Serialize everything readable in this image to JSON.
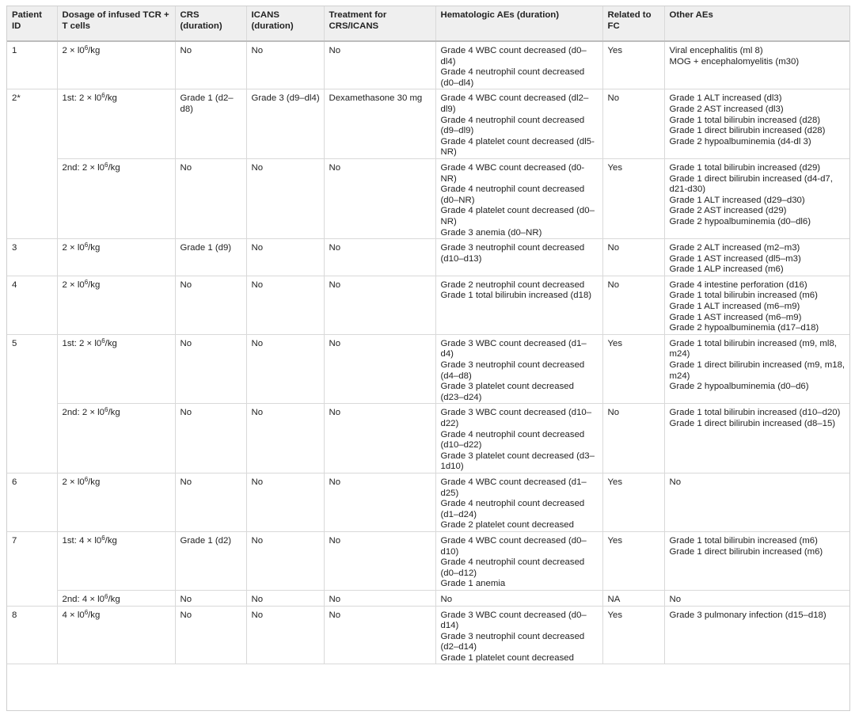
{
  "table": {
    "headers": [
      "Patient ID",
      "Dosage of infused TCR + T cells",
      "CRS (duration)",
      "ICANS (duration)",
      "Treatment for CRS/ICANS",
      "Hematologic AEs (duration)",
      "Related to FC",
      "Other AEs"
    ],
    "rows": [
      {
        "patient": "1",
        "rowspan": 1,
        "dose_base": "2 × l0",
        "dose_exp": "6",
        "dose_unit": "/kg",
        "crs": "No",
        "icans": "No",
        "treatment": "No",
        "hematologic": [
          "Grade 4 WBC count decreased (d0–dl4)",
          "Grade 4 neutrophil count decreased (d0–dl4)"
        ],
        "related_fc": "Yes",
        "other": [
          "Viral encephalitis (ml 8)",
          "MOG + encephalomyelitis (m30)"
        ]
      },
      {
        "patient": "2*",
        "rowspan": 2,
        "dose_base": "1st: 2 × l0",
        "dose_exp": "6",
        "dose_unit": "/kg",
        "crs": "Grade 1 (d2–d8)",
        "icans": "Grade 3 (d9–dl4)",
        "treatment": "Dexamethasone 30 mg",
        "hematologic": [
          "Grade 4 WBC count decreased (dl2–dl9)",
          "Grade 4 neutrophil count decreased (d9–dl9)",
          "Grade 4 platelet count decreased (dl5-NR)"
        ],
        "related_fc": "No",
        "other": [
          "Grade 1 ALT increased (dl3)",
          "Grade 2 AST increased (dl3)",
          "Grade 1 total bilirubin increased (d28)",
          "Grade 1 direct bilirubin increased (d28)",
          "Grade 2 hypoalbuminemia (d4-dl 3)"
        ]
      },
      {
        "patient": "",
        "continued": true,
        "dose_base": "2nd: 2 × l0",
        "dose_exp": "6",
        "dose_unit": "/kg",
        "crs": "No",
        "icans": "No",
        "treatment": "No",
        "hematologic": [
          "Grade 4 WBC count decreased (d0-NR)",
          "Grade 4 neutrophil count decreased (d0–NR)",
          "Grade 4 platelet count decreased (d0–NR)",
          "Grade 3 anemia (d0–NR)"
        ],
        "related_fc": "Yes",
        "other": [
          "Grade 1 total bilirubin increased (d29)",
          "Grade 1 direct bilirubin increased (d4-d7, d21-d30)",
          "Grade 1 ALT increased (d29–d30)",
          "Grade 2 AST increased (d29)",
          "Grade 2 hypoalbuminemia (d0–dl6)"
        ]
      },
      {
        "patient": "3",
        "rowspan": 1,
        "dose_base": "2 × l0",
        "dose_exp": "6",
        "dose_unit": "/kg",
        "crs": "Grade 1 (d9)",
        "icans": "No",
        "treatment": "No",
        "hematologic": [
          "Grade 3 neutrophil count decreased (d10–d13)"
        ],
        "related_fc": "No",
        "other": [
          "Grade 2 ALT increased (m2–m3)",
          "Grade 1 AST increased (dl5–m3)",
          "Grade 1 ALP increased (m6)"
        ]
      },
      {
        "patient": "4",
        "rowspan": 1,
        "dose_base": "2 × l0",
        "dose_exp": "6",
        "dose_unit": "/kg",
        "crs": "No",
        "icans": "No",
        "treatment": "No",
        "hematologic": [
          "Grade 2 neutrophil count decreased",
          "Grade 1 total bilirubin increased (d18)"
        ],
        "related_fc": "No",
        "other": [
          "Grade 4 intestine perforation (d16)",
          "Grade 1 total bilirubin increased (m6)",
          "Grade 1 ALT increased (m6–m9)",
          "Grade 1 AST increased (m6–m9)",
          "Grade 2 hypoalbuminemia (d17–d18)"
        ]
      },
      {
        "patient": "5",
        "rowspan": 2,
        "dose_base": "1st: 2 × l0",
        "dose_exp": "6",
        "dose_unit": "/kg",
        "crs": "No",
        "icans": "No",
        "treatment": "No",
        "hematologic": [
          "Grade 3 WBC count decreased (d1–d4)",
          "Grade 3 neutrophil count decreased (d4–d8)",
          "Grade 3 platelet count decreased (d23–d24)"
        ],
        "related_fc": "Yes",
        "other": [
          "Grade 1 total bilirubin increased (m9, ml8, m24)",
          "Grade 1 direct bilirubin increased (m9, m18, m24)",
          "Grade 2 hypoalbuminemia (d0–d6)"
        ]
      },
      {
        "patient": "",
        "continued": true,
        "dose_base": "2nd: 2 × l0",
        "dose_exp": "6",
        "dose_unit": "/kg",
        "crs": "No",
        "icans": "No",
        "treatment": "No",
        "hematologic": [
          "Grade 3 WBC count decreased (d10–d22)",
          "Grade 4 neutrophil count decreased (d10–d22)",
          "Grade 3 platelet count decreased (d3–1d10)"
        ],
        "related_fc": "No",
        "other": [
          "Grade 1 total bilirubin increased (d10–d20)",
          "Grade 1 direct bilirubin increased (d8–15)"
        ]
      },
      {
        "patient": "6",
        "rowspan": 1,
        "dose_base": "2 × l0",
        "dose_exp": "6",
        "dose_unit": "/kg",
        "crs": "No",
        "icans": "No",
        "treatment": "No",
        "hematologic": [
          "Grade 4 WBC count decreased (d1–d25)",
          "Grade 4 neutrophil count decreased (d1–d24)",
          "Grade 2 platelet count decreased"
        ],
        "related_fc": "Yes",
        "other": [
          "No"
        ]
      },
      {
        "patient": "7",
        "rowspan": 2,
        "dose_base": "1st: 4 × l0",
        "dose_exp": "6",
        "dose_unit": "/kg",
        "crs": "Grade 1 (d2)",
        "icans": "No",
        "treatment": "No",
        "hematologic": [
          "Grade 4 WBC count decreased (d0–d10)",
          "Grade 4 neutrophil count decreased (d0–d12)",
          "Grade 1 anemia"
        ],
        "related_fc": "Yes",
        "other": [
          "Grade 1 total bilirubin increased (m6)",
          "Grade 1 direct bilirubin increased (m6)"
        ]
      },
      {
        "patient": "",
        "continued": true,
        "dose_base": "2nd: 4 × l0",
        "dose_exp": "6",
        "dose_unit": "/kg",
        "crs": "No",
        "icans": "No",
        "treatment": "No",
        "hematologic": [
          "No"
        ],
        "related_fc": "NA",
        "other": [
          "No"
        ]
      },
      {
        "patient": "8",
        "rowspan": 1,
        "dose_base": "4 × l0",
        "dose_exp": "6",
        "dose_unit": "/kg",
        "crs": "No",
        "icans": "No",
        "treatment": "No",
        "hematologic": [
          "Grade 3 WBC count decreased (d0–d14)",
          "Grade 3 neutrophil count decreased (d2–d14)",
          "Grade 1 platelet count decreased"
        ],
        "related_fc": "Yes",
        "other": [
          "Grade 3 pulmonary infection (d15–d18)"
        ]
      }
    ]
  }
}
